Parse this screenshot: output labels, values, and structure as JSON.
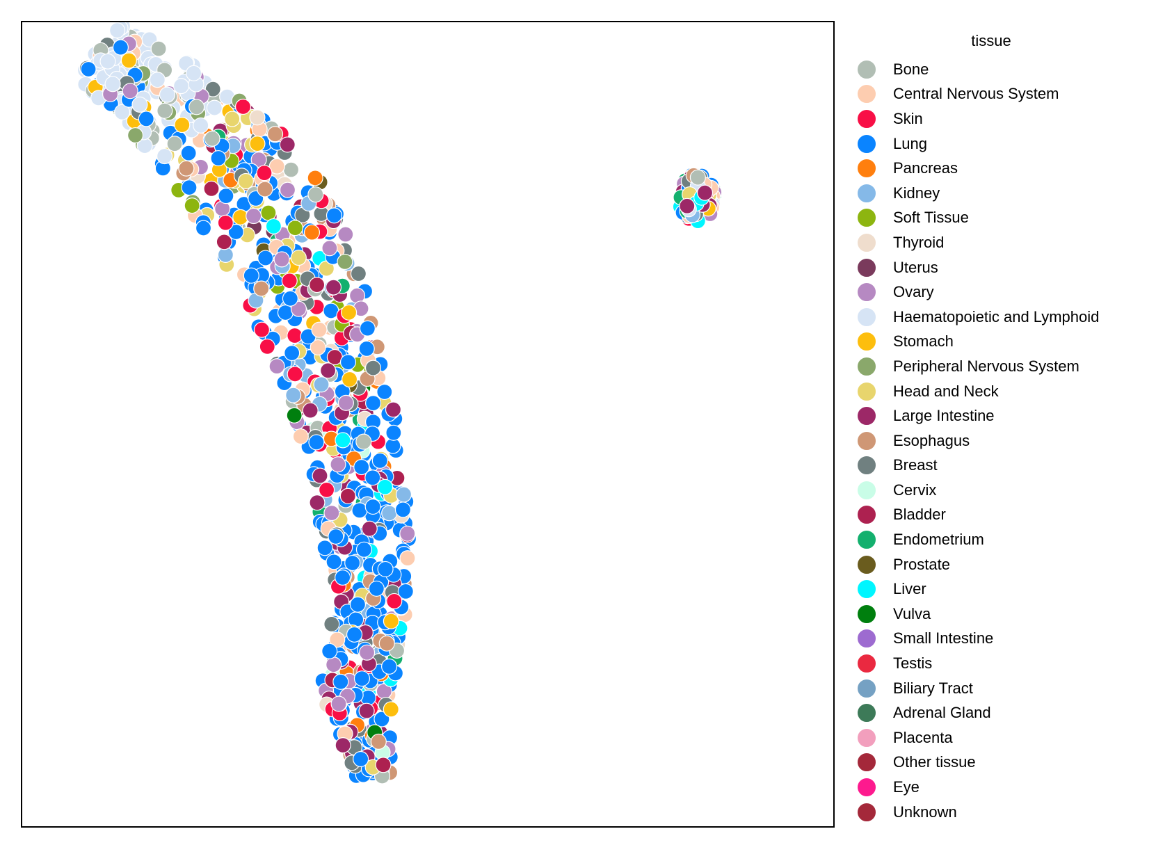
{
  "chart_data": {
    "type": "scatter",
    "title": "",
    "xlabel": "",
    "ylabel": "",
    "grid": false,
    "axis_ticks": false,
    "legend": {
      "title": "tissue",
      "placement": "outside-right"
    },
    "note": "",
    "series": [
      {
        "name": "Bone",
        "color": "#b1beb4"
      },
      {
        "name": "Central Nervous System",
        "color": "#fdcdb0"
      },
      {
        "name": "Skin",
        "color": "#f80f46"
      },
      {
        "name": "Lung",
        "color": "#0a84ff"
      },
      {
        "name": "Pancreas",
        "color": "#ff7f0e"
      },
      {
        "name": "Kidney",
        "color": "#85b9e8"
      },
      {
        "name": "Soft Tissue",
        "color": "#8db510"
      },
      {
        "name": "Thyroid",
        "color": "#efddcd"
      },
      {
        "name": "Uterus",
        "color": "#7a3a5c"
      },
      {
        "name": "Ovary",
        "color": "#b689c2"
      },
      {
        "name": "Haematopoietic and Lymphoid",
        "color": "#d6e4f5"
      },
      {
        "name": "Stomach",
        "color": "#fdbe0d"
      },
      {
        "name": "Peripheral Nervous System",
        "color": "#8aa86b"
      },
      {
        "name": "Head and Neck",
        "color": "#e8d56d"
      },
      {
        "name": "Large Intestine",
        "color": "#9c2867"
      },
      {
        "name": "Esophagus",
        "color": "#cf9775"
      },
      {
        "name": "Breast",
        "color": "#708080"
      },
      {
        "name": "Cervix",
        "color": "#c9fde7"
      },
      {
        "name": "Bladder",
        "color": "#ad2150"
      },
      {
        "name": "Endometrium",
        "color": "#13b06e"
      },
      {
        "name": "Prostate",
        "color": "#6a5c1e"
      },
      {
        "name": "Liver",
        "color": "#00f6ff"
      },
      {
        "name": "Vulva",
        "color": "#007f0e"
      },
      {
        "name": "Small Intestine",
        "color": "#9d6bd0"
      },
      {
        "name": "Testis",
        "color": "#ea2940"
      },
      {
        "name": "Biliary Tract",
        "color": "#75a1c3"
      },
      {
        "name": "Adrenal Gland",
        "color": "#3d7a58"
      },
      {
        "name": "Placenta",
        "color": "#f29fbd"
      },
      {
        "name": "Other tissue",
        "color": "#a4283a"
      },
      {
        "name": "Eye",
        "color": "#fd1a8e"
      },
      {
        "name": "Unknown",
        "color": "#a4283a"
      }
    ],
    "clusters": [
      {
        "id": "main",
        "count": 950,
        "spine": [
          [
            -8.6,
            10.2
          ],
          [
            -7.4,
            9.4
          ],
          [
            -6.2,
            8.2
          ],
          [
            -4.8,
            6.6
          ],
          [
            -3.8,
            4.8
          ],
          [
            -3.0,
            2.6
          ],
          [
            -2.4,
            0.2
          ],
          [
            -2.0,
            -2.2
          ],
          [
            -1.9,
            -4.4
          ],
          [
            -2.2,
            -6.4
          ],
          [
            -1.8,
            -8.8
          ]
        ],
        "halfwidth": [
          0.9,
          1.1,
          1.3,
          1.6,
          1.5,
          1.4,
          1.2,
          1.1,
          0.9,
          0.9,
          0.4
        ],
        "weights_top": {
          "Haematopoietic and Lymphoid": 0.62,
          "Bone": 0.12,
          "Peripheral Nervous System": 0.08,
          "Breast": 0.05,
          "Lung": 0.05,
          "Ovary": 0.03,
          "Central Nervous System": 0.03,
          "Stomach": 0.02
        },
        "weights_mid": {
          "Lung": 0.28,
          "Head and Neck": 0.08,
          "Central Nervous System": 0.07,
          "Skin": 0.07,
          "Kidney": 0.06,
          "Breast": 0.06,
          "Large Intestine": 0.05,
          "Ovary": 0.05,
          "Esophagus": 0.04,
          "Bone": 0.04,
          "Soft Tissue": 0.04,
          "Stomach": 0.03,
          "Pancreas": 0.03,
          "Peripheral Nervous System": 0.02,
          "Bladder": 0.02,
          "Liver": 0.02,
          "Thyroid": 0.02,
          "Cervix": 0.01,
          "Endometrium": 0.01,
          "Prostate": 0.005,
          "Uterus": 0.005
        },
        "weights_bottom": {
          "Lung": 0.42,
          "Breast": 0.08,
          "Large Intestine": 0.07,
          "Kidney": 0.06,
          "Ovary": 0.05,
          "Skin": 0.05,
          "Esophagus": 0.04,
          "Central Nervous System": 0.04,
          "Pancreas": 0.03,
          "Head and Neck": 0.03,
          "Bone": 0.03,
          "Bladder": 0.03,
          "Endometrium": 0.02,
          "Cervix": 0.02,
          "Stomach": 0.015,
          "Liver": 0.015,
          "Vulva": 0.005,
          "Thyroid": 0.01
        }
      },
      {
        "id": "small",
        "count": 120,
        "center": [
          6.2,
          6.4
        ],
        "radius": [
          0.45,
          0.62
        ],
        "weights": {
          "Lung": 0.14,
          "Large Intestine": 0.1,
          "Breast": 0.09,
          "Head and Neck": 0.08,
          "Ovary": 0.07,
          "Endometrium": 0.07,
          "Liver": 0.07,
          "Skin": 0.07,
          "Haematopoietic and Lymphoid": 0.06,
          "Central Nervous System": 0.06,
          "Esophagus": 0.05,
          "Stomach": 0.05,
          "Biliary Tract": 0.03,
          "Bone": 0.03,
          "Kidney": 0.03
        }
      }
    ],
    "xlim": [
      -10.5,
      9.5
    ],
    "ylim": [
      -10.0,
      11.0
    ]
  }
}
